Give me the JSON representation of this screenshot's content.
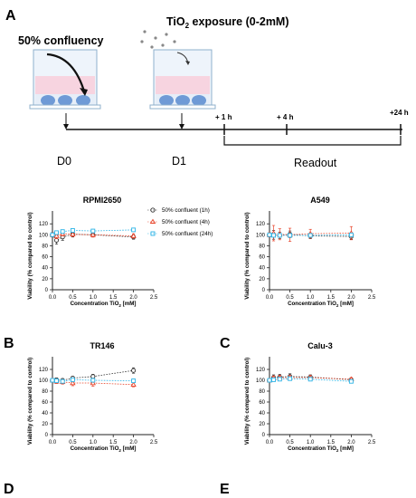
{
  "panel_labels": [
    "A",
    "B",
    "C",
    "D",
    "E"
  ],
  "schematic": {
    "label_confluency": "50% confluency",
    "label_exposure_prefix": "TiO",
    "label_exposure_sub": "2",
    "label_exposure_suffix": " exposure (0-2mM)",
    "day_labels": [
      "D0",
      "D1"
    ],
    "time_labels": [
      "+ 1 h",
      "+ 4 h",
      "+24 h"
    ],
    "readout_label": "Readout"
  },
  "legend": {
    "entries": [
      "50% confluent (1h)",
      "50% confluent (4h)",
      "50% confluent (24h)"
    ],
    "colors": [
      "#333333",
      "#e8442a",
      "#2ab3e6"
    ],
    "markers": [
      "circle",
      "triangle",
      "square"
    ]
  },
  "chart_data": [
    {
      "type": "line",
      "title": "RPMI2650",
      "xlabel_prefix": "Concentration TiO",
      "xlabel_sub": "2",
      "xlabel_suffix": " [mM]",
      "ylabel": "Viability (% compared to control)",
      "xlim": [
        0,
        2.5
      ],
      "ylim": [
        0,
        150
      ],
      "xticks": [
        "0.0",
        "0.5",
        "1.0",
        "1.5",
        "2.0",
        "2.5"
      ],
      "yticks": [
        "0",
        "20",
        "40",
        "60",
        "80",
        "100",
        "120"
      ],
      "x": [
        0,
        0.1,
        0.25,
        0.5,
        1.0,
        2.0
      ],
      "series": [
        {
          "name": "50% confluent (1h)",
          "values": [
            100,
            90,
            96,
            101,
            100,
            96
          ],
          "errors": [
            4,
            7,
            6,
            5,
            4,
            4
          ]
        },
        {
          "name": "50% confluent (4h)",
          "values": [
            100,
            98,
            102,
            101,
            100,
            98
          ],
          "errors": [
            3,
            5,
            4,
            4,
            4,
            4
          ]
        },
        {
          "name": "50% confluent (24h)",
          "values": [
            100,
            104,
            106,
            108,
            107,
            109
          ],
          "errors": [
            3,
            3,
            3,
            3,
            3,
            3
          ]
        }
      ],
      "legend": "top-right"
    },
    {
      "type": "line",
      "title": "A549",
      "xlabel_prefix": "Concentration TiO",
      "xlabel_sub": "2",
      "xlabel_suffix": " [mM]",
      "ylabel": "Viability (% compared to control)",
      "xlim": [
        0,
        2.5
      ],
      "ylim": [
        0,
        150
      ],
      "xticks": [
        "0.0",
        "0.5",
        "1.0",
        "1.5",
        "2.0",
        "2.5"
      ],
      "yticks": [
        "0",
        "20",
        "40",
        "60",
        "80",
        "100",
        "120"
      ],
      "x": [
        0,
        0.1,
        0.25,
        0.5,
        1.0,
        2.0
      ],
      "series": [
        {
          "name": "50% confluent (1h)",
          "values": [
            100,
            100,
            99,
            101,
            98,
            97
          ],
          "errors": [
            3,
            8,
            6,
            6,
            5,
            5
          ]
        },
        {
          "name": "50% confluent (4h)",
          "values": [
            100,
            103,
            101,
            100,
            102,
            103
          ],
          "errors": [
            4,
            14,
            10,
            12,
            8,
            12
          ]
        },
        {
          "name": "50% confluent (24h)",
          "values": [
            100,
            99,
            99,
            99,
            99,
            100
          ],
          "errors": [
            3,
            3,
            3,
            3,
            3,
            3
          ]
        }
      ]
    },
    {
      "type": "line",
      "title": "TR146",
      "xlabel_prefix": "Concentration TiO",
      "xlabel_sub": "2",
      "xlabel_suffix": " [mM]",
      "ylabel": "Viability (% compared to control)",
      "xlim": [
        0,
        2.5
      ],
      "ylim": [
        0,
        150
      ],
      "xticks": [
        "0.0",
        "0.5",
        "1.0",
        "1.5",
        "2.0",
        "2.5"
      ],
      "yticks": [
        "0",
        "20",
        "40",
        "60",
        "80",
        "100",
        "120"
      ],
      "x": [
        0,
        0.1,
        0.25,
        0.5,
        1.0,
        2.0
      ],
      "series": [
        {
          "name": "50% confluent (1h)",
          "values": [
            100,
            101,
            100,
            104,
            107,
            118
          ],
          "errors": [
            3,
            3,
            3,
            3,
            4,
            5
          ]
        },
        {
          "name": "50% confluent (4h)",
          "values": [
            100,
            98,
            97,
            95,
            95,
            92
          ],
          "errors": [
            3,
            4,
            4,
            5,
            6,
            4
          ]
        },
        {
          "name": "50% confluent (24h)",
          "values": [
            100,
            99,
            98,
            101,
            100,
            99
          ],
          "errors": [
            3,
            3,
            3,
            3,
            3,
            3
          ]
        }
      ]
    },
    {
      "type": "line",
      "title": "Calu-3",
      "xlabel_prefix": "Concentration TiO",
      "xlabel_sub": "2",
      "xlabel_suffix": " [mM]",
      "ylabel": "Viability (% compared to control)",
      "xlim": [
        0,
        2.5
      ],
      "ylim": [
        0,
        150
      ],
      "xticks": [
        "0.0",
        "0.5",
        "1.0",
        "1.5",
        "2.0",
        "2.5"
      ],
      "yticks": [
        "0",
        "20",
        "40",
        "60",
        "80",
        "100",
        "120"
      ],
      "x": [
        0,
        0.1,
        0.25,
        0.5,
        1.0,
        2.0
      ],
      "series": [
        {
          "name": "50% confluent (1h)",
          "values": [
            100,
            105,
            106,
            107,
            106,
            101
          ],
          "errors": [
            3,
            5,
            5,
            5,
            4,
            3
          ]
        },
        {
          "name": "50% confluent (4h)",
          "values": [
            100,
            104,
            105,
            105,
            105,
            102
          ],
          "errors": [
            3,
            4,
            4,
            4,
            4,
            3
          ]
        },
        {
          "name": "50% confluent (24h)",
          "values": [
            100,
            101,
            102,
            103,
            102,
            98
          ],
          "errors": [
            3,
            3,
            3,
            3,
            3,
            3
          ]
        }
      ]
    }
  ]
}
